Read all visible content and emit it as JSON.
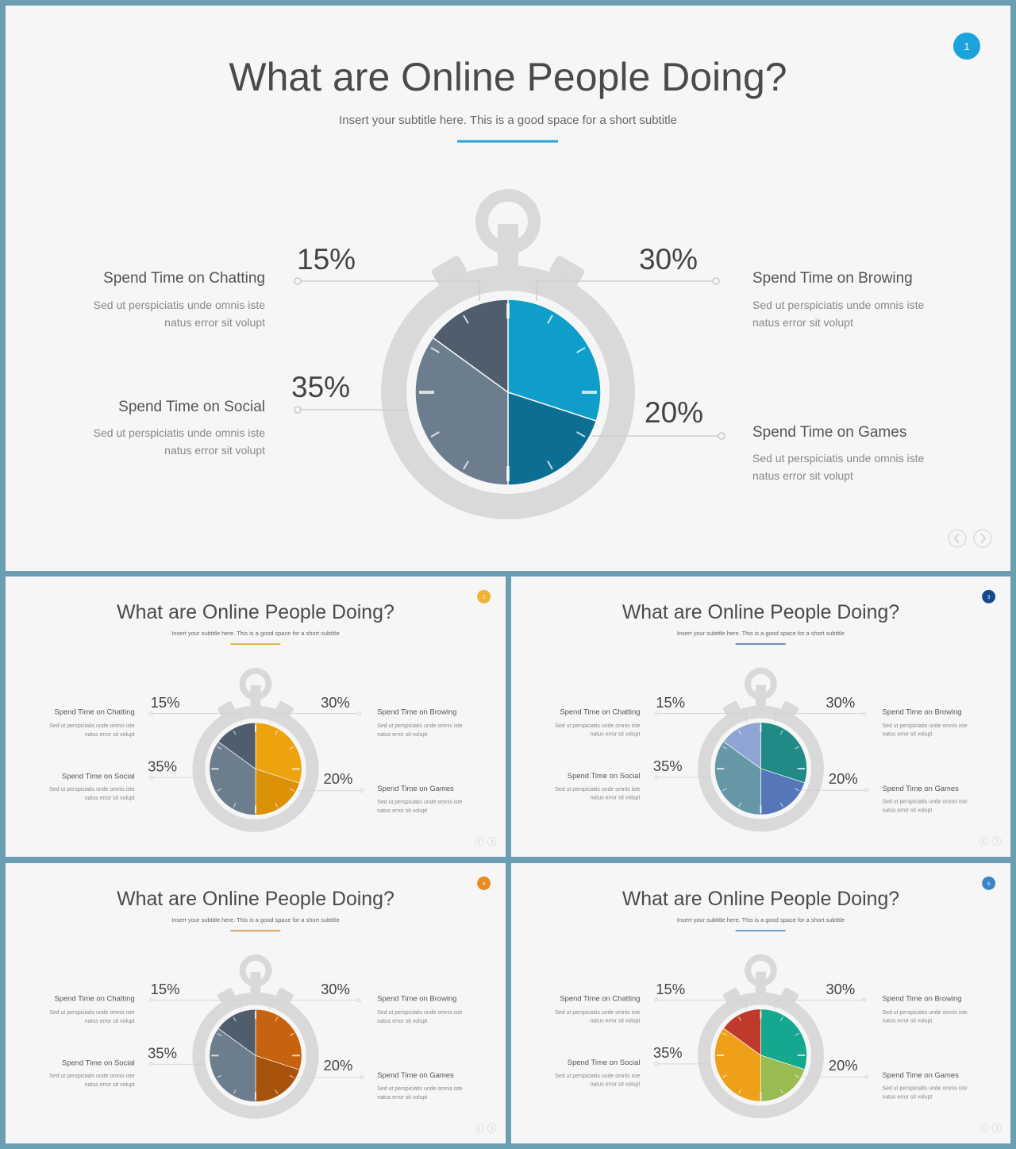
{
  "slides": [
    {
      "page_number": "1",
      "title": "What are Online People Doing?",
      "subtitle": "Insert your subtitle here. This is a good space for a short subtitle",
      "accent": "#22a3d3",
      "badge_color": "#1da3dc",
      "slices": [
        "#0e9ec9",
        "#0c6e92",
        "#6c7d8e",
        "#4f5d6d"
      ]
    },
    {
      "page_number": "2",
      "title": "What are Online People Doing?",
      "subtitle": "Insert your subtitle here. This is a good space for a short subtitle",
      "accent": "#e2a21a",
      "badge_color": "#f0b335",
      "slices": [
        "#eda30e",
        "#dc9206",
        "#6c7d8e",
        "#4f5d6d"
      ]
    },
    {
      "page_number": "3",
      "title": "What are Online People Doing?",
      "subtitle": "Insert your subtitle here. This is a good space for a short subtitle",
      "accent": "#3b6fa8",
      "badge_color": "#154a8a",
      "slices": [
        "#1f8a86",
        "#5577b9",
        "#6597a6",
        "#8fa3d4"
      ]
    },
    {
      "page_number": "4",
      "title": "What are Online People Doing?",
      "subtitle": "Insert your subtitle here. This is a good space for a short subtitle",
      "accent": "#d5882e",
      "badge_color": "#e88a22",
      "slices": [
        "#c7630f",
        "#a8530b",
        "#6c7d8e",
        "#4f5d6d"
      ]
    },
    {
      "page_number": "5",
      "title": "What are Online People Doing?",
      "subtitle": "Insert your subtitle here. This is a good space for a short subtitle",
      "accent": "#3b88c2",
      "badge_color": "#3a86c4",
      "slices": [
        "#14a88e",
        "#98bb52",
        "#eda018",
        "#c03a2c"
      ]
    }
  ],
  "segments": {
    "chatting": {
      "percent": "15%",
      "title": "Spend Time on Chatting",
      "line1": "Sed ut perspiciatis unde omnis iste",
      "line2": "natus error sit volupt"
    },
    "browsing": {
      "percent": "30%",
      "title": "Spend Time on Browing",
      "line1": "Sed ut perspiciatis unde omnis iste",
      "line2": "natus error sit volupt"
    },
    "social": {
      "percent": "35%",
      "title": "Spend Time on Social",
      "line1": "Sed ut perspiciatis unde omnis iste",
      "line2": "natus error sit volupt"
    },
    "games": {
      "percent": "20%",
      "title": "Spend Time on Games",
      "line1": "Sed ut perspiciatis unde omnis iste",
      "line2": "natus error sit volupt"
    }
  },
  "chart_data": [
    {
      "type": "pie",
      "categories": [
        "Spend Time on Browing",
        "Spend Time on Games",
        "Spend Time on Social",
        "Spend Time on Chatting"
      ],
      "values": [
        30,
        20,
        35,
        15
      ]
    },
    {
      "type": "pie",
      "categories": [
        "Spend Time on Browing",
        "Spend Time on Games",
        "Spend Time on Social",
        "Spend Time on Chatting"
      ],
      "values": [
        30,
        20,
        35,
        15
      ]
    },
    {
      "type": "pie",
      "categories": [
        "Spend Time on Browing",
        "Spend Time on Games",
        "Spend Time on Social",
        "Spend Time on Chatting"
      ],
      "values": [
        30,
        20,
        35,
        15
      ]
    },
    {
      "type": "pie",
      "categories": [
        "Spend Time on Browing",
        "Spend Time on Games",
        "Spend Time on Social",
        "Spend Time on Chatting"
      ],
      "values": [
        30,
        20,
        35,
        15
      ]
    },
    {
      "type": "pie",
      "categories": [
        "Spend Time on Browing",
        "Spend Time on Games",
        "Spend Time on Social",
        "Spend Time on Chatting"
      ],
      "values": [
        30,
        20,
        35,
        15
      ]
    }
  ],
  "icons": {
    "prev": "chevron-left-icon",
    "next": "chevron-right-icon"
  }
}
